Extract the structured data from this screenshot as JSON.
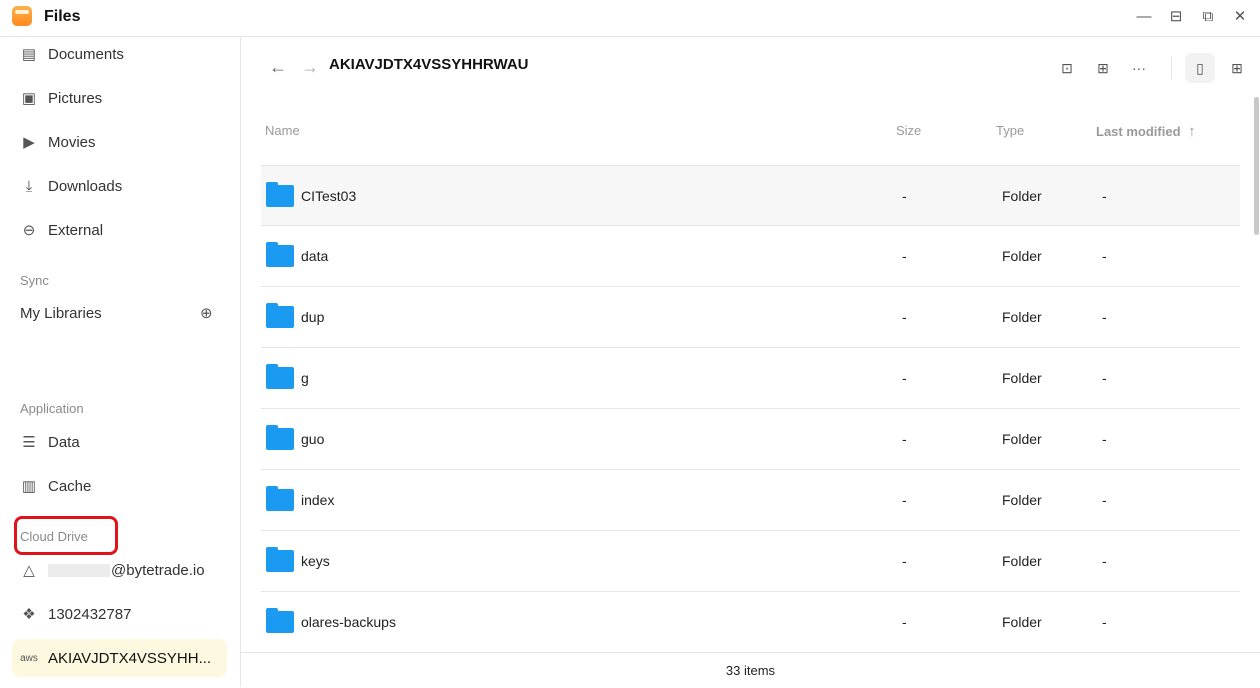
{
  "app": {
    "title": "Files"
  },
  "sidebar": {
    "items": [
      {
        "label": "Documents",
        "icon": "document-icon"
      },
      {
        "label": "Pictures",
        "icon": "pictures-icon"
      },
      {
        "label": "Movies",
        "icon": "movie-icon"
      },
      {
        "label": "Downloads",
        "icon": "download-icon"
      },
      {
        "label": "External",
        "icon": "drive-icon"
      }
    ],
    "sync_heading": "Sync",
    "my_libraries": "My Libraries",
    "application_heading": "Application",
    "app_items": [
      {
        "label": "Data"
      },
      {
        "label": "Cache"
      }
    ],
    "cloud_heading": "Cloud Drive",
    "cloud_items": [
      {
        "label": "@bytetrade.io",
        "icon": "google-drive-icon"
      },
      {
        "label": "1302432787",
        "icon": "dropbox-icon"
      },
      {
        "label": "AKIAVJDTX4VSSYHH...",
        "icon": "aws-icon",
        "active": true
      }
    ]
  },
  "main": {
    "path": "AKIAVJDTX4VSSYHHRWAU",
    "columns": {
      "name": "Name",
      "size": "Size",
      "type": "Type",
      "modified": "Last modified"
    },
    "rows": [
      {
        "name": "CITest03",
        "size": "-",
        "type": "Folder",
        "modified": "-"
      },
      {
        "name": "data",
        "size": "-",
        "type": "Folder",
        "modified": "-"
      },
      {
        "name": "dup",
        "size": "-",
        "type": "Folder",
        "modified": "-"
      },
      {
        "name": "g",
        "size": "-",
        "type": "Folder",
        "modified": "-"
      },
      {
        "name": "guo",
        "size": "-",
        "type": "Folder",
        "modified": "-"
      },
      {
        "name": "index",
        "size": "-",
        "type": "Folder",
        "modified": "-"
      },
      {
        "name": "keys",
        "size": "-",
        "type": "Folder",
        "modified": "-"
      },
      {
        "name": "olares-backups",
        "size": "-",
        "type": "Folder",
        "modified": "-"
      }
    ],
    "footer": "33 items"
  },
  "colors": {
    "accent_folder": "#1a9af0",
    "active_bg": "#fdf9e0",
    "highlight": "#e0131b"
  }
}
